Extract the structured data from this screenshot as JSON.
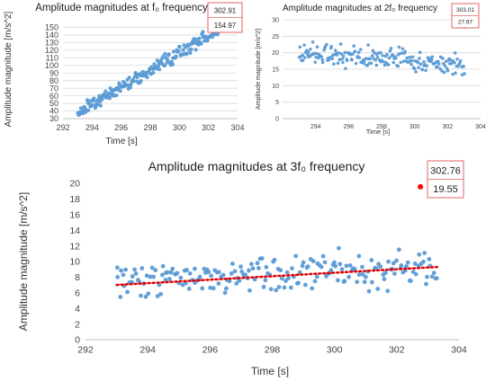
{
  "chart_data": [
    {
      "type": "scatter",
      "title": "Amplitude magnitudes at f₀ frequency",
      "xlabel": "Time [s]",
      "ylabel": "Amplitude magnitude [m/s^2]",
      "xlim": [
        292,
        304
      ],
      "ylim": [
        30,
        160
      ],
      "xticks": [
        292,
        294,
        296,
        298,
        300,
        302,
        304
      ],
      "yticks": [
        30,
        40,
        50,
        60,
        70,
        80,
        90,
        100,
        110,
        120,
        130,
        140,
        150
      ],
      "grid": true,
      "color": "#5b9bd5",
      "highlight_color": "#ff0000",
      "trend": {
        "start": [
          293.0,
          38
        ],
        "end": [
          303.0,
          150
        ],
        "kind": "scatter-trend"
      },
      "series": [
        {
          "x_range": [
            293.0,
            303.0
          ],
          "noise": 8,
          "count": 200
        }
      ],
      "highlight": {
        "x": 302.91,
        "y": 154.97
      },
      "callout": {
        "line1": "302.91",
        "line2": "154.97"
      }
    },
    {
      "type": "scatter",
      "title": "Amplitude magnitudes at 2f₀ frequency",
      "xlabel": "Time [s]",
      "ylabel": "Amplitude magnitude [m/s^2]",
      "xlim": [
        292,
        304
      ],
      "ylim": [
        0,
        30
      ],
      "xticks": [
        294,
        296,
        298,
        300,
        302,
        304
      ],
      "yticks": [
        0,
        5,
        10,
        15,
        20,
        25,
        30
      ],
      "grid": true,
      "color": "#5b9bd5",
      "highlight_color": "#ff0000",
      "trend": {
        "start": [
          293.0,
          20.5
        ],
        "end": [
          303.0,
          16.0
        ]
      },
      "series": [
        {
          "x_range": [
            293.0,
            303.0
          ],
          "noise": 3,
          "count": 200
        }
      ],
      "highlight": {
        "x": 303.01,
        "y": 27.97
      },
      "callout": {
        "line1": "303.01",
        "line2": "27.97"
      }
    },
    {
      "type": "scatter",
      "title": "Amplitude magnitudes at 3f₀ frequency",
      "xlabel": "Time [s]",
      "ylabel": "Amplitude magnitude [m/s^2]",
      "xlim": [
        292,
        304
      ],
      "ylim": [
        0,
        20
      ],
      "xticks": [
        292,
        294,
        296,
        298,
        300,
        302,
        304
      ],
      "yticks": [
        0,
        2,
        4,
        6,
        8,
        10,
        12,
        14,
        16,
        18,
        20
      ],
      "grid": false,
      "color": "#5b9bd5",
      "highlight_color": "#ff0000",
      "trendline_color": "#e00000",
      "trendline": {
        "x": [
          293.0,
          303.3
        ],
        "y": [
          7.0,
          9.3
        ]
      },
      "trend": {
        "start": [
          293.0,
          7.3
        ],
        "end": [
          303.3,
          9.2
        ]
      },
      "series": [
        {
          "x_range": [
            293.0,
            303.3
          ],
          "noise": 2.2,
          "count": 200
        }
      ],
      "highlight": {
        "x": 302.76,
        "y": 19.55
      },
      "callout": {
        "line1": "302.76",
        "line2": "19.55"
      }
    }
  ]
}
